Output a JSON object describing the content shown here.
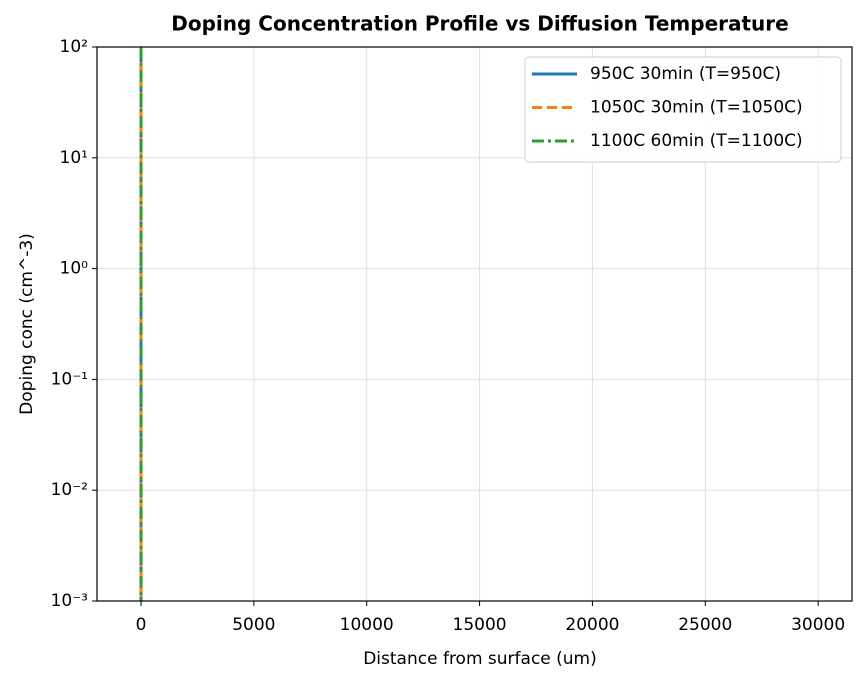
{
  "chart_data": {
    "type": "line",
    "title": "Doping Concentration Profile vs Diffusion Temperature",
    "xlabel": "Distance from surface (um)",
    "ylabel": "Doping conc (cm^-3)",
    "x": [
      0,
      1
    ],
    "series": [
      {
        "name": "950C 30min (T=950C)",
        "color": "#1f77b4",
        "dash": "solid",
        "values": [
          100,
          0.001
        ]
      },
      {
        "name": "1050C 30min (T=1050C)",
        "color": "#ff7f0e",
        "dash": "dashed",
        "values": [
          100,
          0.001
        ]
      },
      {
        "name": "1100C 60min (T=1100C)",
        "color": "#2ca02c",
        "dash": "dashdot",
        "values": [
          100,
          0.001
        ]
      }
    ],
    "xlim": [
      -1950,
      31500
    ],
    "xticks": [
      0,
      5000,
      10000,
      15000,
      20000,
      25000,
      30000
    ],
    "ylim": [
      0.001,
      100
    ],
    "yscale": "log",
    "yticks": [
      {
        "value": 0.001,
        "label": "10⁻³"
      },
      {
        "value": 0.01,
        "label": "10⁻²"
      },
      {
        "value": 0.1,
        "label": "10⁻¹"
      },
      {
        "value": 1,
        "label": "10⁰"
      },
      {
        "value": 10,
        "label": "10¹"
      },
      {
        "value": 100,
        "label": "10²"
      }
    ],
    "grid": true,
    "legend": "upper right"
  }
}
